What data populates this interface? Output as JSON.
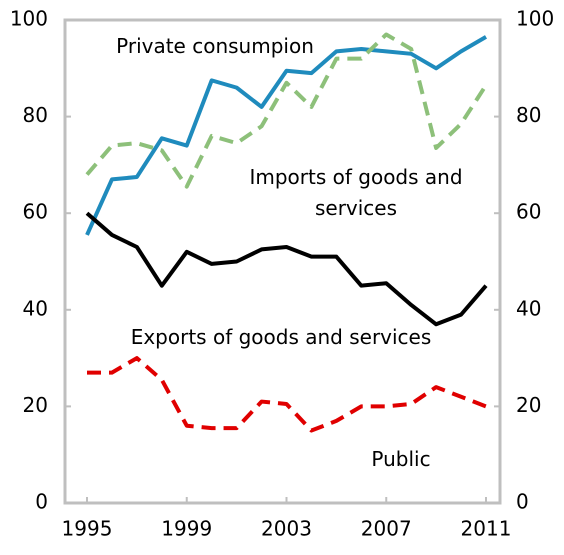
{
  "chart_data": {
    "type": "line",
    "x": [
      1995,
      1996,
      1997,
      1998,
      1999,
      2000,
      2001,
      2002,
      2003,
      2004,
      2005,
      2006,
      2007,
      2008,
      2009,
      2010,
      2011
    ],
    "xlim": [
      1995,
      2011
    ],
    "xticks": [
      1995,
      1999,
      2003,
      2007,
      2011
    ],
    "ylim": [
      0,
      100
    ],
    "yticks": [
      0,
      20,
      40,
      60,
      80,
      100
    ],
    "y2lim": [
      0,
      100
    ],
    "y2ticks": [
      0,
      20,
      40,
      60,
      80,
      100
    ],
    "series": [
      {
        "name": "Private consumpion",
        "color": "#1f8bbd",
        "dash": false,
        "values": [
          55.5,
          67,
          67.5,
          75.5,
          74,
          87.5,
          86,
          82,
          89.5,
          89,
          93.5,
          94,
          93.5,
          93,
          90,
          93.5,
          96.5
        ]
      },
      {
        "name": "Imports of goods and services",
        "color": "#8dc07a",
        "dash": true,
        "values": [
          68,
          74,
          74.5,
          73,
          65.5,
          76,
          74.5,
          78,
          87,
          82,
          92,
          92,
          97,
          94,
          73.5,
          78.5,
          86.5
        ]
      },
      {
        "name": "Exports of goods and services",
        "color": "#000000",
        "dash": false,
        "values": [
          60,
          55.5,
          53,
          45,
          52,
          49.5,
          50,
          52.5,
          53,
          51,
          51,
          45,
          45.5,
          41,
          37,
          39,
          45
        ]
      },
      {
        "name": "Public",
        "color": "#e00000",
        "dash": true,
        "values": [
          27,
          27,
          30,
          25.5,
          16,
          15.5,
          15.5,
          21,
          20.5,
          15,
          17,
          20,
          20,
          20.5,
          24,
          22,
          20
        ]
      }
    ]
  }
}
